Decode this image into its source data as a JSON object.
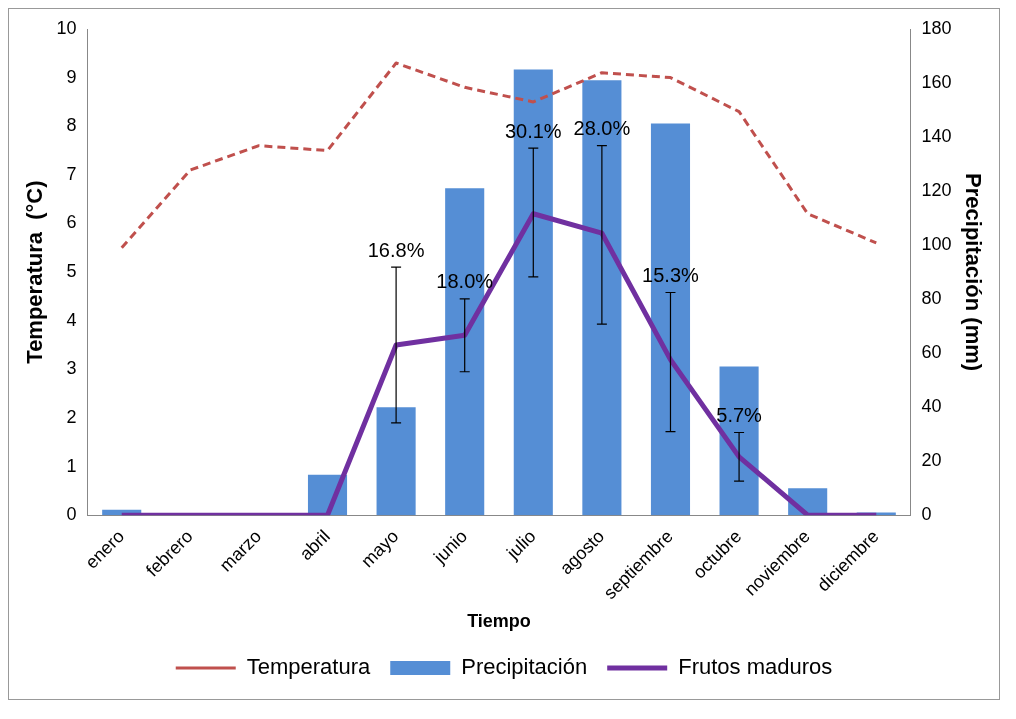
{
  "chart_data": {
    "type": "bar",
    "xlabel": "Tiempo",
    "ylabel": "Temperatura  (°C)",
    "y2label": "Precipitación (mm)",
    "categories": [
      "enero",
      "febrero",
      "marzo",
      "abril",
      "mayo",
      "junio",
      "julio",
      "agosto",
      "septiembre",
      "octubre",
      "noviembre",
      "diciembre"
    ],
    "series": [
      {
        "name": "Temperatura",
        "type": "line",
        "color": "#c0504d",
        "line_style": "dashed",
        "values": [
          5.5,
          7.1,
          7.6,
          7.5,
          9.3,
          8.8,
          8.5,
          9.1,
          9.0,
          8.3,
          6.2,
          5.6
        ]
      },
      {
        "name": "Precipitación",
        "axis": "y2",
        "color": "#558ed5",
        "values": [
          2,
          null,
          null,
          15,
          40,
          121,
          165,
          161,
          145,
          55,
          10,
          1
        ]
      },
      {
        "name": "Frutos maduros",
        "type": "line",
        "color": "#7030a0",
        "line_style": "solid",
        "values": [
          0,
          0,
          0,
          0,
          3.5,
          3.7,
          6.2,
          5.8,
          3.2,
          1.2,
          0,
          0
        ],
        "errors": [
          null,
          null,
          null,
          null,
          [
            1.9,
            5.1
          ],
          [
            2.95,
            4.45
          ],
          [
            4.9,
            7.55
          ],
          [
            3.93,
            7.6
          ],
          [
            1.72,
            4.58
          ],
          [
            0.7,
            1.7
          ],
          null,
          null
        ]
      }
    ],
    "annotations": [
      {
        "text": "16.8%",
        "x": "mayo",
        "y": 5.1
      },
      {
        "text": "18.0%",
        "x": "junio",
        "y": 4.45
      },
      {
        "text": "30.1%",
        "x": "julio",
        "y": 7.55
      },
      {
        "text": "28.0%",
        "x": "agosto",
        "y": 7.6
      },
      {
        "text": "15.3%",
        "x": "septiembre",
        "y": 4.58
      },
      {
        "text": "5.7%",
        "x": "octubre",
        "y": 1.7
      }
    ],
    "ylim": [
      0,
      10
    ],
    "yticks": [
      0,
      1,
      2,
      3,
      4,
      5,
      6,
      7,
      8,
      9,
      10
    ],
    "y2lim": [
      0,
      180
    ],
    "y2ticks": [
      0,
      20,
      40,
      60,
      80,
      100,
      120,
      140,
      160,
      180
    ],
    "grid": false,
    "legend": "bottom",
    "marker": "none"
  }
}
